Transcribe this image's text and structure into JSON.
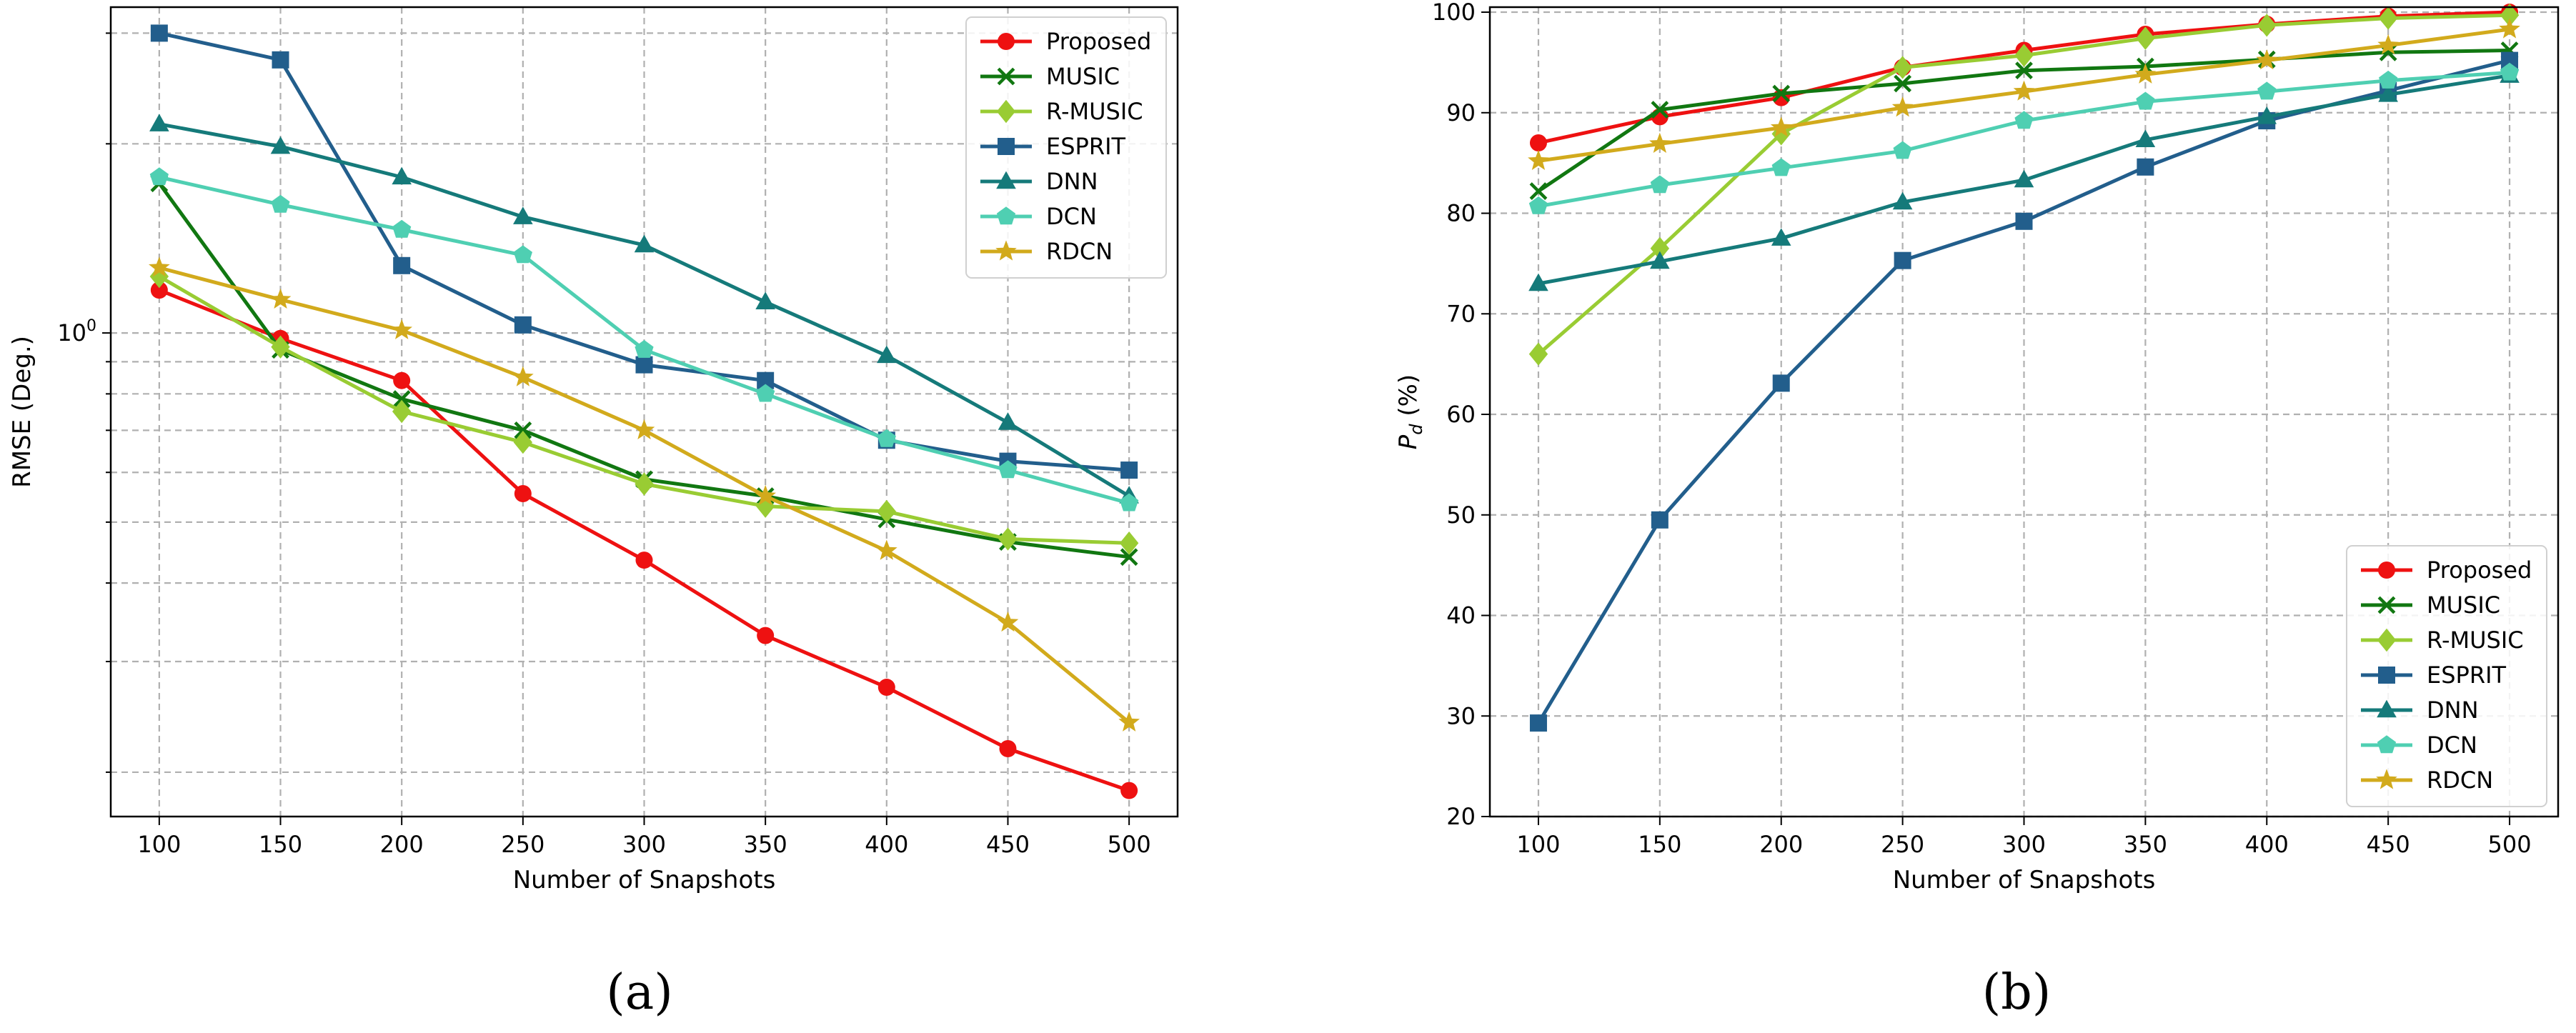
{
  "chart_data": [
    {
      "type": "line",
      "panel": "a",
      "title": "",
      "xlabel": "Number of Snapshots",
      "ylabel": "RMSE (Deg.)",
      "yscale": "log",
      "ylim": [
        0.17,
        3.3
      ],
      "xlim": [
        80,
        520
      ],
      "grid": true,
      "legend_position": "top-right",
      "categories": [
        100,
        150,
        200,
        250,
        300,
        350,
        400,
        450,
        500
      ],
      "y_tick_labels": [
        {
          "value": 1,
          "base": "10",
          "exp": "0"
        }
      ],
      "series": [
        {
          "name": "Proposed",
          "color": "#ee1111",
          "marker": "circle",
          "values": [
            1.17,
            0.98,
            0.84,
            0.555,
            0.435,
            0.33,
            0.273,
            0.218,
            0.187
          ]
        },
        {
          "name": "MUSIC",
          "color": "#117711",
          "marker": "x",
          "values": [
            1.73,
            0.94,
            0.785,
            0.7,
            0.585,
            0.55,
            0.505,
            0.465,
            0.44
          ]
        },
        {
          "name": "R-MUSIC",
          "color": "#99cc33",
          "marker": "diamond",
          "values": [
            1.23,
            0.95,
            0.75,
            0.67,
            0.575,
            0.53,
            0.52,
            0.47,
            0.463
          ]
        },
        {
          "name": "ESPRIT",
          "color": "#225e8c",
          "marker": "square",
          "values": [
            3.0,
            2.72,
            1.28,
            1.03,
            0.89,
            0.84,
            0.675,
            0.625,
            0.605
          ]
        },
        {
          "name": "DNN",
          "color": "#157a7a",
          "marker": "triangle",
          "values": [
            2.15,
            1.98,
            1.77,
            1.53,
            1.38,
            1.12,
            0.92,
            0.72,
            0.55
          ]
        },
        {
          "name": "DCN",
          "color": "#4fcfb2",
          "marker": "pentagon",
          "values": [
            1.77,
            1.6,
            1.46,
            1.33,
            0.94,
            0.8,
            0.678,
            0.605,
            0.536
          ]
        },
        {
          "name": "RDCN",
          "color": "#d2aa1c",
          "marker": "star",
          "values": [
            1.27,
            1.13,
            1.01,
            0.85,
            0.7,
            0.55,
            0.45,
            0.346,
            0.24
          ]
        }
      ]
    },
    {
      "type": "line",
      "panel": "b",
      "title": "",
      "xlabel": "Number of Snapshots",
      "ylabel_main": "P",
      "ylabel_sub": "d",
      "ylabel_suffix": " (%)",
      "ylim": [
        20,
        100.5
      ],
      "xlim": [
        80,
        520
      ],
      "y_ticks": [
        20,
        30,
        40,
        50,
        60,
        70,
        80,
        90,
        100
      ],
      "grid": true,
      "legend_position": "bottom-right",
      "categories": [
        100,
        150,
        200,
        250,
        300,
        350,
        400,
        450,
        500
      ],
      "series": [
        {
          "name": "Proposed",
          "color": "#ee1111",
          "marker": "circle",
          "values": [
            87.0,
            89.6,
            91.5,
            94.5,
            96.2,
            97.8,
            98.8,
            99.6,
            100.0
          ]
        },
        {
          "name": "MUSIC",
          "color": "#117711",
          "marker": "x",
          "values": [
            82.2,
            90.3,
            91.9,
            92.9,
            94.2,
            94.6,
            95.3,
            96.0,
            96.2
          ]
        },
        {
          "name": "R-MUSIC",
          "color": "#99cc33",
          "marker": "diamond",
          "values": [
            66.0,
            76.5,
            87.9,
            94.5,
            95.7,
            97.4,
            98.7,
            99.4,
            99.7
          ]
        },
        {
          "name": "ESPRIT",
          "color": "#225e8c",
          "marker": "square",
          "values": [
            29.3,
            49.5,
            63.1,
            75.3,
            79.2,
            84.6,
            89.2,
            92.2,
            95.2
          ]
        },
        {
          "name": "DNN",
          "color": "#157a7a",
          "marker": "triangle",
          "values": [
            73.0,
            75.2,
            77.5,
            81.1,
            83.3,
            87.3,
            89.6,
            91.8,
            93.7
          ]
        },
        {
          "name": "DCN",
          "color": "#4fcfb2",
          "marker": "pentagon",
          "values": [
            80.7,
            82.8,
            84.5,
            86.2,
            89.2,
            91.1,
            92.1,
            93.2,
            94.0
          ]
        },
        {
          "name": "RDCN",
          "color": "#d2aa1c",
          "marker": "star",
          "values": [
            85.2,
            86.9,
            88.5,
            90.5,
            92.1,
            93.8,
            95.2,
            96.7,
            98.3
          ]
        }
      ]
    }
  ],
  "captions": [
    "(a)",
    "(b)"
  ]
}
